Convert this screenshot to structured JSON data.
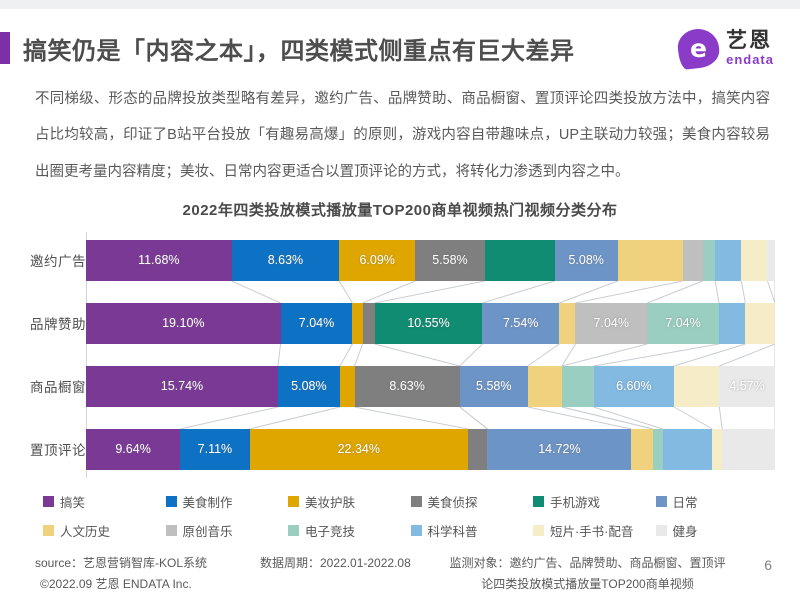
{
  "header": {
    "title": "搞笑仍是「内容之本」，四类模式侧重点有巨大差异",
    "logo": {
      "mark": "e",
      "cn": "艺恩",
      "en": "endata",
      "color": "#8a3cc8"
    }
  },
  "intro": "不同梯级、形态的品牌投放类型略有差异，邀约广告、品牌赞助、商品橱窗、置顶评论四类投放方法中，搞笑内容占比均较高，印证了B站平台投放「有趣易高爆」的原则，游戏内容自带趣味点，UP主联动力较强；美食内容较易出圈更考量内容精度；美妆、日常内容更适合以置顶评论的方式，将转化力渗透到内容之中。",
  "chart_data": {
    "type": "bar",
    "stacked": true,
    "orientation": "horizontal",
    "normalized_rows": true,
    "grid": false,
    "title": "2022年四类投放模式播放量TOP200商单视频热门视频分类分布",
    "unit": "percent",
    "series": [
      {
        "key": "funny",
        "name": "搞笑",
        "color": "#7b3996"
      },
      {
        "key": "food-making",
        "name": "美食制作",
        "color": "#0d72c4"
      },
      {
        "key": "beauty-skincare",
        "name": "美妆护肤",
        "color": "#dfa600"
      },
      {
        "key": "food-detective",
        "name": "美食侦探",
        "color": "#7f7f7f"
      },
      {
        "key": "mobile-game",
        "name": "手机游戏",
        "color": "#0f8c71"
      },
      {
        "key": "daily",
        "name": "日常",
        "color": "#6d94c6"
      },
      {
        "key": "humanities-history",
        "name": "人文历史",
        "color": "#efd17e"
      },
      {
        "key": "original-music",
        "name": "原创音乐",
        "color": "#bfbfbf"
      },
      {
        "key": "esports",
        "name": "电子竞技",
        "color": "#99cec0"
      },
      {
        "key": "science",
        "name": "科学科普",
        "color": "#82bae2"
      },
      {
        "key": "short-film-dub",
        "name": "短片·手书·配音",
        "color": "#f7ecc8"
      },
      {
        "key": "fitness",
        "name": "健身",
        "color": "#e9e9e9"
      }
    ],
    "rows": [
      {
        "category": "邀约广告",
        "segments": [
          {
            "series": 0,
            "value": 11.68,
            "label": "11.68%"
          },
          {
            "series": 1,
            "value": 8.63,
            "label": "8.63%"
          },
          {
            "series": 2,
            "value": 6.09,
            "label": "6.09%"
          },
          {
            "series": 3,
            "value": 5.58,
            "label": "5.58%"
          },
          {
            "series": 4,
            "value": 5.6,
            "label": ""
          },
          {
            "series": 5,
            "value": 5.08,
            "label": "5.08%"
          },
          {
            "series": 6,
            "value": 5.2,
            "label": ""
          },
          {
            "series": 7,
            "value": 1.6,
            "label": ""
          },
          {
            "series": 8,
            "value": 1.0,
            "label": ""
          },
          {
            "series": 9,
            "value": 2.1,
            "label": ""
          },
          {
            "series": 10,
            "value": 2.1,
            "label": ""
          },
          {
            "series": 11,
            "value": 0.6,
            "label": ""
          }
        ]
      },
      {
        "category": "品牌赞助",
        "segments": [
          {
            "series": 0,
            "value": 19.1,
            "label": "19.10%"
          },
          {
            "series": 1,
            "value": 7.04,
            "label": "7.04%"
          },
          {
            "series": 2,
            "value": 1.0,
            "label": ""
          },
          {
            "series": 3,
            "value": 1.2,
            "label": ""
          },
          {
            "series": 4,
            "value": 10.55,
            "label": "10.55%"
          },
          {
            "series": 5,
            "value": 7.54,
            "label": "7.54%"
          },
          {
            "series": 6,
            "value": 1.6,
            "label": ""
          },
          {
            "series": 7,
            "value": 7.04,
            "label": "7.04%"
          },
          {
            "series": 8,
            "value": 7.04,
            "label": "7.04%"
          },
          {
            "series": 9,
            "value": 2.6,
            "label": ""
          },
          {
            "series": 10,
            "value": 2.9,
            "label": ""
          }
        ]
      },
      {
        "category": "商品橱窗",
        "segments": [
          {
            "series": 0,
            "value": 15.74,
            "label": "15.74%"
          },
          {
            "series": 1,
            "value": 5.08,
            "label": "5.08%"
          },
          {
            "series": 2,
            "value": 1.2,
            "label": ""
          },
          {
            "series": 3,
            "value": 8.63,
            "label": "8.63%"
          },
          {
            "series": 5,
            "value": 5.58,
            "label": "5.58%"
          },
          {
            "series": 6,
            "value": 2.8,
            "label": ""
          },
          {
            "series": 8,
            "value": 2.6,
            "label": ""
          },
          {
            "series": 9,
            "value": 6.6,
            "label": "6.60%"
          },
          {
            "series": 10,
            "value": 3.7,
            "label": ""
          },
          {
            "series": 11,
            "value": 4.57,
            "label": "4.57%"
          }
        ]
      },
      {
        "category": "置顶评论",
        "segments": [
          {
            "series": 0,
            "value": 9.64,
            "label": "9.64%"
          },
          {
            "series": 1,
            "value": 7.11,
            "label": "7.11%"
          },
          {
            "series": 2,
            "value": 22.34,
            "label": "22.34%"
          },
          {
            "series": 3,
            "value": 2.0,
            "label": ""
          },
          {
            "series": 5,
            "value": 14.72,
            "label": "14.72%"
          },
          {
            "series": 6,
            "value": 2.2,
            "label": ""
          },
          {
            "series": 8,
            "value": 1.0,
            "label": ""
          },
          {
            "series": 9,
            "value": 5.1,
            "label": ""
          },
          {
            "series": 10,
            "value": 1.0,
            "label": ""
          },
          {
            "series": 11,
            "value": 5.4,
            "label": ""
          }
        ]
      }
    ],
    "legend_position": "bottom",
    "connector_line_color": "#c9cdd1"
  },
  "footer": {
    "source": "source：艺恩营销智库-KOL系统",
    "copyright": "©2022.09 艺恩 ENDATA Inc.",
    "period": "数据周期：2022.01-2022.08",
    "scope": "监测对象：邀约广告、品牌赞助、商品橱窗、置顶评论四类投放模式播放量TOP200商单视频",
    "page": "6"
  }
}
